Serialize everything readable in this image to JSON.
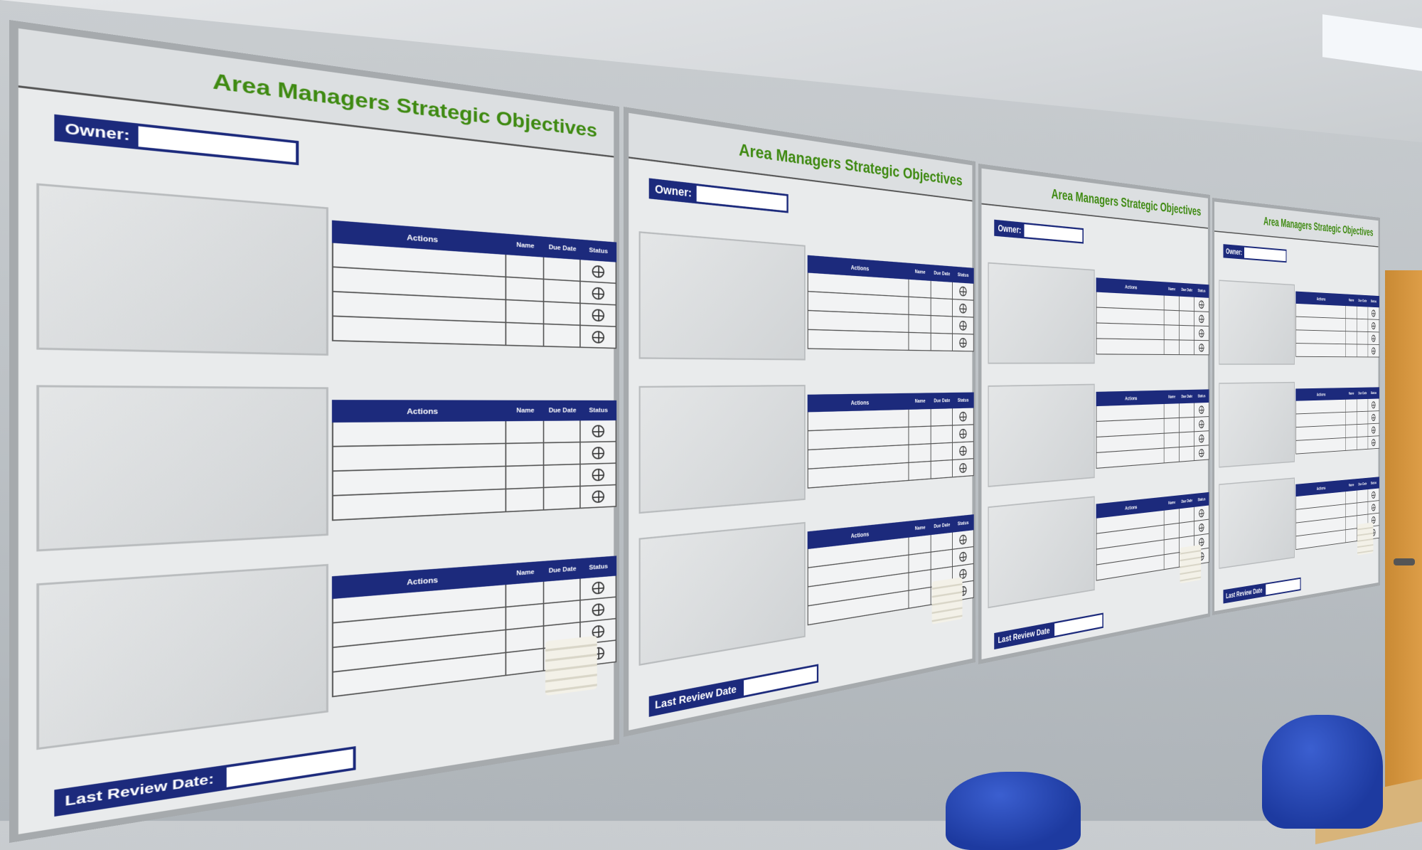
{
  "boards": [
    {
      "title": "Area Managers Strategic Objectives",
      "owner_label": "Owner:",
      "last_review_label": "Last Review Date:",
      "table_headers": {
        "actions": "Actions",
        "name": "Name",
        "due_date": "Due Date",
        "status": "Status"
      }
    },
    {
      "title": "Area Managers Strategic Objectives",
      "owner_label": "Owner:",
      "last_review_label": "Last Review Date",
      "table_headers": {
        "actions": "Actions",
        "name": "Name",
        "due_date": "Due Date",
        "status": "Status"
      }
    },
    {
      "title": "Area Managers Strategic Objectives",
      "owner_label": "Owner:",
      "last_review_label": "Last Review Date",
      "table_headers": {
        "actions": "Actions",
        "name": "Name",
        "due_date": "Due Date",
        "status": "Status"
      }
    },
    {
      "title": "Area Managers Strategic Objectives",
      "owner_label": "Owner:",
      "last_review_label": "Last Review Date",
      "table_headers": {
        "actions": "Actions",
        "name": "Name",
        "due_date": "Due Date",
        "status": "Status"
      }
    }
  ],
  "icons": {
    "status": "circle-cross-icon",
    "leaflet_holder": "leaflet-holder"
  },
  "colors": {
    "header_blue": "#1c2a7c",
    "title_green": "#3f8a12",
    "chair_blue": "#2a4ac0",
    "door": "#d9963e"
  }
}
